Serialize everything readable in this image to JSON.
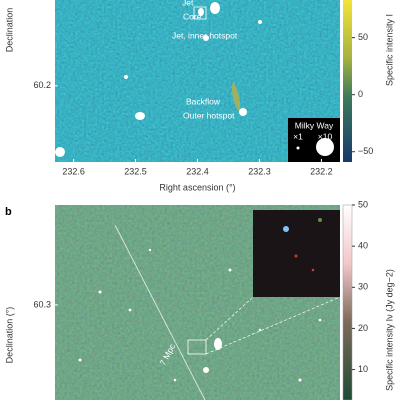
{
  "chart_data": [
    {
      "type": "image",
      "xlabel": "Right ascension (°)",
      "ylabel": "Declination",
      "xlim": [
        232.63,
        232.17
      ],
      "xticks": [
        232.6,
        232.5,
        232.4,
        232.3,
        232.2
      ],
      "ylim": [
        60.153,
        60.253
      ],
      "yticks": [
        60.2
      ],
      "colorbar_lim": [
        -59,
        83
      ],
      "colorbar_ticks": [
        50,
        0,
        {
          "value": -50,
          "label": "−50"
        }
      ],
      "colorbar_label": "Specific intensity I",
      "annotations": [
        "Jet",
        "Core",
        "Jet, inner hotspot",
        "Backflow",
        "Outer hotspot",
        "Milky Way",
        "×1",
        "×10"
      ]
    },
    {
      "type": "image",
      "panel_label": "b",
      "ylabel": "Declination (°)",
      "ylim": [
        60.2,
        60.405
      ],
      "yticks": [
        60.3
      ],
      "colorbar_lim": [
        2.6,
        50
      ],
      "colorbar_ticks": [
        50,
        40,
        30,
        20,
        10
      ],
      "colorbar_label": "Specific intensity Iν (Jy deg−2)",
      "annotations": [
        "7 Mpc"
      ]
    }
  ]
}
